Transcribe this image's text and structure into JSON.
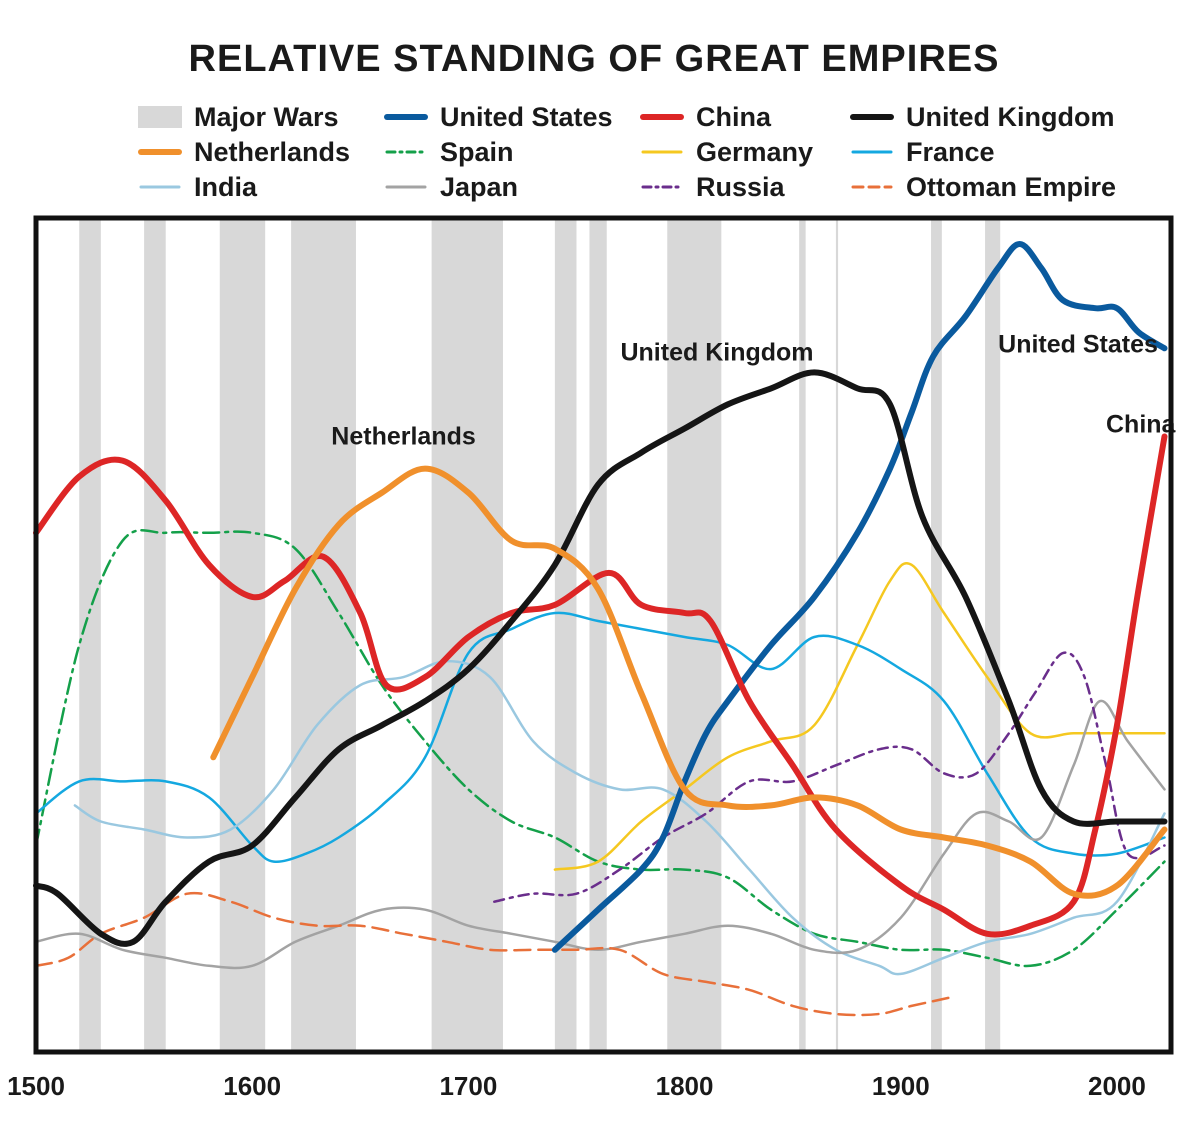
{
  "chart_data": {
    "type": "line",
    "title": "RELATIVE STANDING OF GREAT EMPIRES",
    "xlabel": "",
    "ylabel": "",
    "xlim": [
      1500,
      2025
    ],
    "ylim": [
      0,
      1
    ],
    "x_ticks": [
      "1500",
      "1600",
      "1700",
      "1800",
      "1900",
      "2000"
    ],
    "grid": false,
    "legend_position": "top",
    "legend": [
      {
        "label": "Major Wars",
        "kind": "band",
        "color": "#d8d8d8"
      },
      {
        "label": "United States",
        "kind": "line",
        "color": "#0a5a9e"
      },
      {
        "label": "China",
        "kind": "line",
        "color": "#dd2626"
      },
      {
        "label": "United Kingdom",
        "kind": "line",
        "color": "#151515"
      },
      {
        "label": "Netherlands",
        "kind": "line",
        "color": "#f0902c"
      },
      {
        "label": "Spain",
        "kind": "line",
        "color": "#14a04a"
      },
      {
        "label": "Germany",
        "kind": "line",
        "color": "#f5c820"
      },
      {
        "label": "France",
        "kind": "line",
        "color": "#14a8e0"
      },
      {
        "label": "India",
        "kind": "line",
        "color": "#9ac8e0"
      },
      {
        "label": "Japan",
        "kind": "line",
        "color": "#a3a3a3"
      },
      {
        "label": "Russia",
        "kind": "line",
        "color": "#6a2e8c"
      },
      {
        "label": "Ottoman Empire",
        "kind": "line",
        "color": "#e8703a"
      }
    ],
    "major_wars": [
      [
        1520,
        1530
      ],
      [
        1550,
        1560
      ],
      [
        1585,
        1606
      ],
      [
        1618,
        1648
      ],
      [
        1683,
        1716
      ],
      [
        1740,
        1750
      ],
      [
        1756,
        1764
      ],
      [
        1792,
        1817
      ],
      [
        1853,
        1856
      ],
      [
        1870,
        1871
      ],
      [
        1914,
        1919
      ],
      [
        1939,
        1946
      ]
    ],
    "annotations": [
      {
        "text": "United Kingdom",
        "x": 1815,
        "y": 0.835
      },
      {
        "text": "Netherlands",
        "x": 1670,
        "y": 0.73
      },
      {
        "text": "United States",
        "x": 1982,
        "y": 0.845
      },
      {
        "text": "China",
        "x": 2011,
        "y": 0.745
      }
    ],
    "series": [
      {
        "name": "United States",
        "color": "#0a5a9e",
        "width": 6,
        "dash": "",
        "x": [
          1740,
          1760,
          1780,
          1790,
          1800,
          1810,
          1820,
          1840,
          1860,
          1880,
          1895,
          1905,
          1915,
          1930,
          1945,
          1955,
          1965,
          1975,
          1990,
          2000,
          2010,
          2022
        ],
        "y": [
          0.1,
          0.15,
          0.2,
          0.24,
          0.31,
          0.37,
          0.41,
          0.48,
          0.54,
          0.62,
          0.7,
          0.77,
          0.84,
          0.89,
          0.95,
          0.98,
          0.95,
          0.91,
          0.9,
          0.9,
          0.87,
          0.85
        ]
      },
      {
        "name": "China",
        "color": "#dd2626",
        "width": 6,
        "dash": "",
        "x": [
          1500,
          1520,
          1540,
          1560,
          1580,
          1600,
          1615,
          1633,
          1650,
          1662,
          1680,
          1700,
          1720,
          1740,
          1765,
          1780,
          1800,
          1812,
          1830,
          1850,
          1870,
          1900,
          1920,
          1940,
          1960,
          1980,
          1990,
          2000,
          2010,
          2022
        ],
        "y": [
          0.62,
          0.69,
          0.71,
          0.66,
          0.58,
          0.54,
          0.56,
          0.59,
          0.52,
          0.43,
          0.44,
          0.49,
          0.52,
          0.53,
          0.57,
          0.53,
          0.52,
          0.51,
          0.41,
          0.33,
          0.25,
          0.18,
          0.15,
          0.12,
          0.13,
          0.16,
          0.25,
          0.38,
          0.55,
          0.74
        ]
      },
      {
        "name": "United Kingdom",
        "color": "#151515",
        "width": 6,
        "dash": "",
        "x": [
          1500,
          1510,
          1530,
          1545,
          1560,
          1580,
          1600,
          1620,
          1640,
          1660,
          1680,
          1700,
          1720,
          1740,
          1760,
          1780,
          1800,
          1820,
          1840,
          1860,
          1880,
          1895,
          1910,
          1930,
          1950,
          1965,
          1980,
          2000,
          2022
        ],
        "y": [
          0.18,
          0.17,
          0.12,
          0.11,
          0.16,
          0.21,
          0.23,
          0.29,
          0.35,
          0.38,
          0.41,
          0.45,
          0.51,
          0.58,
          0.68,
          0.72,
          0.75,
          0.78,
          0.8,
          0.82,
          0.8,
          0.78,
          0.64,
          0.54,
          0.41,
          0.3,
          0.26,
          0.26,
          0.26
        ]
      },
      {
        "name": "Netherlands",
        "color": "#f0902c",
        "width": 6,
        "dash": "",
        "x": [
          1582,
          1600,
          1620,
          1640,
          1660,
          1680,
          1700,
          1720,
          1740,
          1760,
          1780,
          1800,
          1820,
          1840,
          1860,
          1880,
          1900,
          1920,
          1940,
          1960,
          1980,
          2000,
          2022
        ],
        "y": [
          0.34,
          0.44,
          0.55,
          0.63,
          0.67,
          0.7,
          0.67,
          0.61,
          0.6,
          0.55,
          0.42,
          0.3,
          0.28,
          0.28,
          0.29,
          0.28,
          0.25,
          0.24,
          0.23,
          0.21,
          0.17,
          0.18,
          0.25
        ]
      },
      {
        "name": "Spain",
        "color": "#14a04a",
        "width": 2.5,
        "dash": "16 6 3 6",
        "x": [
          1500,
          1520,
          1540,
          1560,
          1580,
          1600,
          1620,
          1640,
          1660,
          1680,
          1700,
          1720,
          1740,
          1760,
          1780,
          1800,
          1820,
          1840,
          1860,
          1880,
          1900,
          1920,
          1940,
          1960,
          1980,
          2000,
          2022
        ],
        "y": [
          0.23,
          0.48,
          0.61,
          0.62,
          0.62,
          0.62,
          0.6,
          0.52,
          0.43,
          0.36,
          0.3,
          0.26,
          0.24,
          0.21,
          0.2,
          0.2,
          0.19,
          0.15,
          0.12,
          0.11,
          0.1,
          0.1,
          0.09,
          0.08,
          0.1,
          0.15,
          0.21
        ]
      },
      {
        "name": "Germany",
        "color": "#f5c820",
        "width": 2.5,
        "dash": "",
        "x": [
          1740,
          1760,
          1780,
          1800,
          1820,
          1840,
          1860,
          1880,
          1895,
          1905,
          1920,
          1940,
          1960,
          1980,
          2000,
          2022
        ],
        "y": [
          0.2,
          0.21,
          0.26,
          0.3,
          0.34,
          0.36,
          0.38,
          0.48,
          0.56,
          0.58,
          0.52,
          0.44,
          0.37,
          0.37,
          0.37,
          0.37
        ]
      },
      {
        "name": "France",
        "color": "#14a8e0",
        "width": 2.5,
        "dash": "",
        "x": [
          1500,
          1520,
          1540,
          1560,
          1580,
          1600,
          1610,
          1625,
          1640,
          1660,
          1680,
          1700,
          1720,
          1740,
          1760,
          1780,
          1800,
          1820,
          1840,
          1860,
          1880,
          1900,
          1920,
          1940,
          1960,
          1980,
          2000,
          2022
        ],
        "y": [
          0.27,
          0.31,
          0.31,
          0.31,
          0.29,
          0.23,
          0.21,
          0.22,
          0.24,
          0.28,
          0.34,
          0.47,
          0.5,
          0.52,
          0.51,
          0.5,
          0.49,
          0.48,
          0.45,
          0.49,
          0.48,
          0.45,
          0.41,
          0.32,
          0.24,
          0.22,
          0.22,
          0.24
        ]
      },
      {
        "name": "India",
        "color": "#9ac8e0",
        "width": 2.5,
        "dash": "",
        "x": [
          1518,
          1530,
          1550,
          1570,
          1590,
          1610,
          1630,
          1650,
          1670,
          1690,
          1710,
          1730,
          1750,
          1770,
          1790,
          1810,
          1830,
          1850,
          1870,
          1890,
          1900,
          1920,
          1940,
          1960,
          1980,
          2000,
          2022
        ],
        "y": [
          0.28,
          0.26,
          0.25,
          0.24,
          0.25,
          0.3,
          0.38,
          0.43,
          0.44,
          0.46,
          0.44,
          0.36,
          0.32,
          0.3,
          0.3,
          0.26,
          0.2,
          0.14,
          0.1,
          0.08,
          0.07,
          0.09,
          0.11,
          0.12,
          0.14,
          0.16,
          0.27
        ]
      },
      {
        "name": "Japan",
        "color": "#a3a3a3",
        "width": 2.5,
        "dash": "",
        "x": [
          1500,
          1520,
          1540,
          1560,
          1580,
          1600,
          1620,
          1640,
          1660,
          1680,
          1700,
          1720,
          1740,
          1760,
          1780,
          1800,
          1820,
          1840,
          1860,
          1880,
          1900,
          1920,
          1935,
          1950,
          1965,
          1980,
          1992,
          2005,
          2022
        ],
        "y": [
          0.11,
          0.12,
          0.1,
          0.09,
          0.08,
          0.08,
          0.11,
          0.13,
          0.15,
          0.15,
          0.13,
          0.12,
          0.11,
          0.1,
          0.11,
          0.12,
          0.13,
          0.12,
          0.1,
          0.1,
          0.14,
          0.22,
          0.27,
          0.26,
          0.24,
          0.33,
          0.41,
          0.36,
          0.3
        ]
      },
      {
        "name": "Russia",
        "color": "#6a2e8c",
        "width": 2.5,
        "dash": "10 6 3 6",
        "x": [
          1712,
          1730,
          1750,
          1770,
          1790,
          1810,
          1830,
          1850,
          1870,
          1890,
          1905,
          1920,
          1935,
          1950,
          1962,
          1975,
          1985,
          1995,
          2005,
          2022
        ],
        "y": [
          0.16,
          0.17,
          0.17,
          0.2,
          0.24,
          0.27,
          0.31,
          0.31,
          0.33,
          0.35,
          0.35,
          0.32,
          0.32,
          0.37,
          0.42,
          0.47,
          0.44,
          0.33,
          0.22,
          0.23
        ]
      },
      {
        "name": "Ottoman Empire",
        "color": "#e8703a",
        "width": 2.5,
        "dash": "16 8",
        "x": [
          1500,
          1515,
          1530,
          1550,
          1570,
          1590,
          1610,
          1630,
          1650,
          1670,
          1690,
          1710,
          1730,
          1750,
          1770,
          1790,
          1810,
          1830,
          1850,
          1870,
          1890,
          1905,
          1922
        ],
        "y": [
          0.08,
          0.09,
          0.12,
          0.14,
          0.17,
          0.16,
          0.14,
          0.13,
          0.13,
          0.12,
          0.11,
          0.1,
          0.1,
          0.1,
          0.1,
          0.07,
          0.06,
          0.05,
          0.03,
          0.02,
          0.02,
          0.03,
          0.04
        ]
      }
    ]
  }
}
